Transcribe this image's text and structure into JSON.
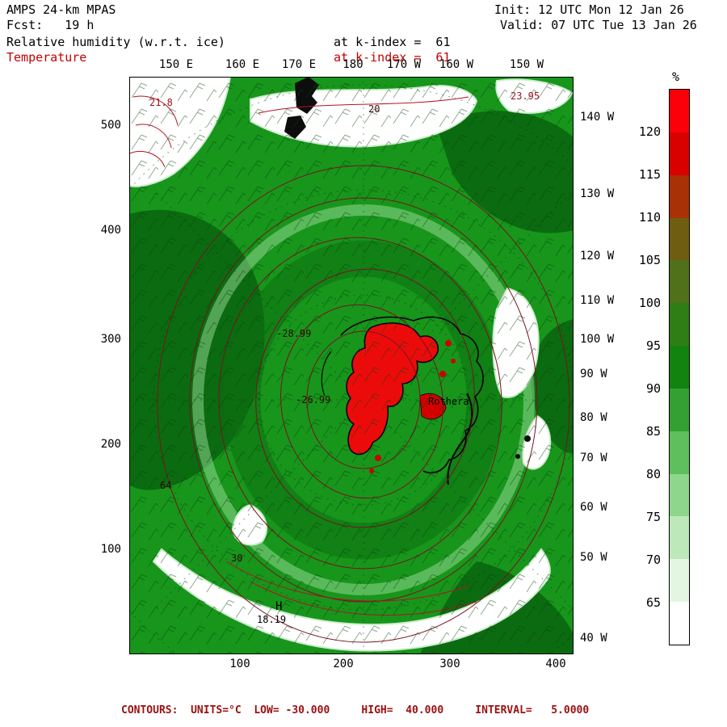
{
  "header": {
    "model": "AMPS 24-km MPAS",
    "forecast": "Fcst:   19 h",
    "field_primary": "Relative humidity (w.r.t. ice)",
    "field_secondary": "Temperature",
    "level_primary": "at k-index =  61",
    "level_secondary": "at k-index =  61",
    "init": "Init: 12 UTC Mon 12 Jan 26",
    "valid": "Valid: 07 UTC Tue 13 Jan 26"
  },
  "axes": {
    "top": [
      "150 E",
      "160 E",
      "170 E",
      "180",
      "170 W",
      "160 W",
      "150 W"
    ],
    "left": [
      "500",
      "400",
      "300",
      "200",
      "100"
    ],
    "bottom": [
      "100",
      "200",
      "300",
      "400"
    ],
    "right": [
      "140 W",
      "130 W",
      "120 W",
      "110 W",
      "100 W",
      "90 W",
      "80 W",
      "70 W",
      "60 W",
      "50 W",
      "40 W"
    ]
  },
  "colorbar": {
    "unit": "%",
    "labels": [
      "120",
      "115",
      "110",
      "105",
      "100",
      "95",
      "90",
      "85",
      "80",
      "75",
      "70",
      "65"
    ],
    "colors": [
      "#fb0008",
      "#d90000",
      "#a93106",
      "#6f5d12",
      "#50711a",
      "#2e7d15",
      "#12830f",
      "#34a033",
      "#5ebf5c",
      "#8dd68b",
      "#bce8ba",
      "#e3f6e2",
      "#ffffff"
    ]
  },
  "map": {
    "labels": [
      {
        "text": "21.8"
      },
      {
        "text": "20"
      },
      {
        "text": "23.95"
      },
      {
        "text": "-28.99"
      },
      {
        "text": "-26.99"
      },
      {
        "text": "Rothera"
      },
      {
        "text": "64"
      },
      {
        "text": "30"
      },
      {
        "text": "H"
      },
      {
        "text": "18.19"
      }
    ]
  },
  "footer": {
    "contour_info": "CONTOURS:  UNITS=°C  LOW= -30.000     HIGH=  40.000     INTERVAL=   5.0000"
  },
  "colors": {
    "text_red": "#c40000",
    "footer_red": "#9b1010",
    "contour_red": "#7a1220",
    "map_green": "#17961b"
  }
}
